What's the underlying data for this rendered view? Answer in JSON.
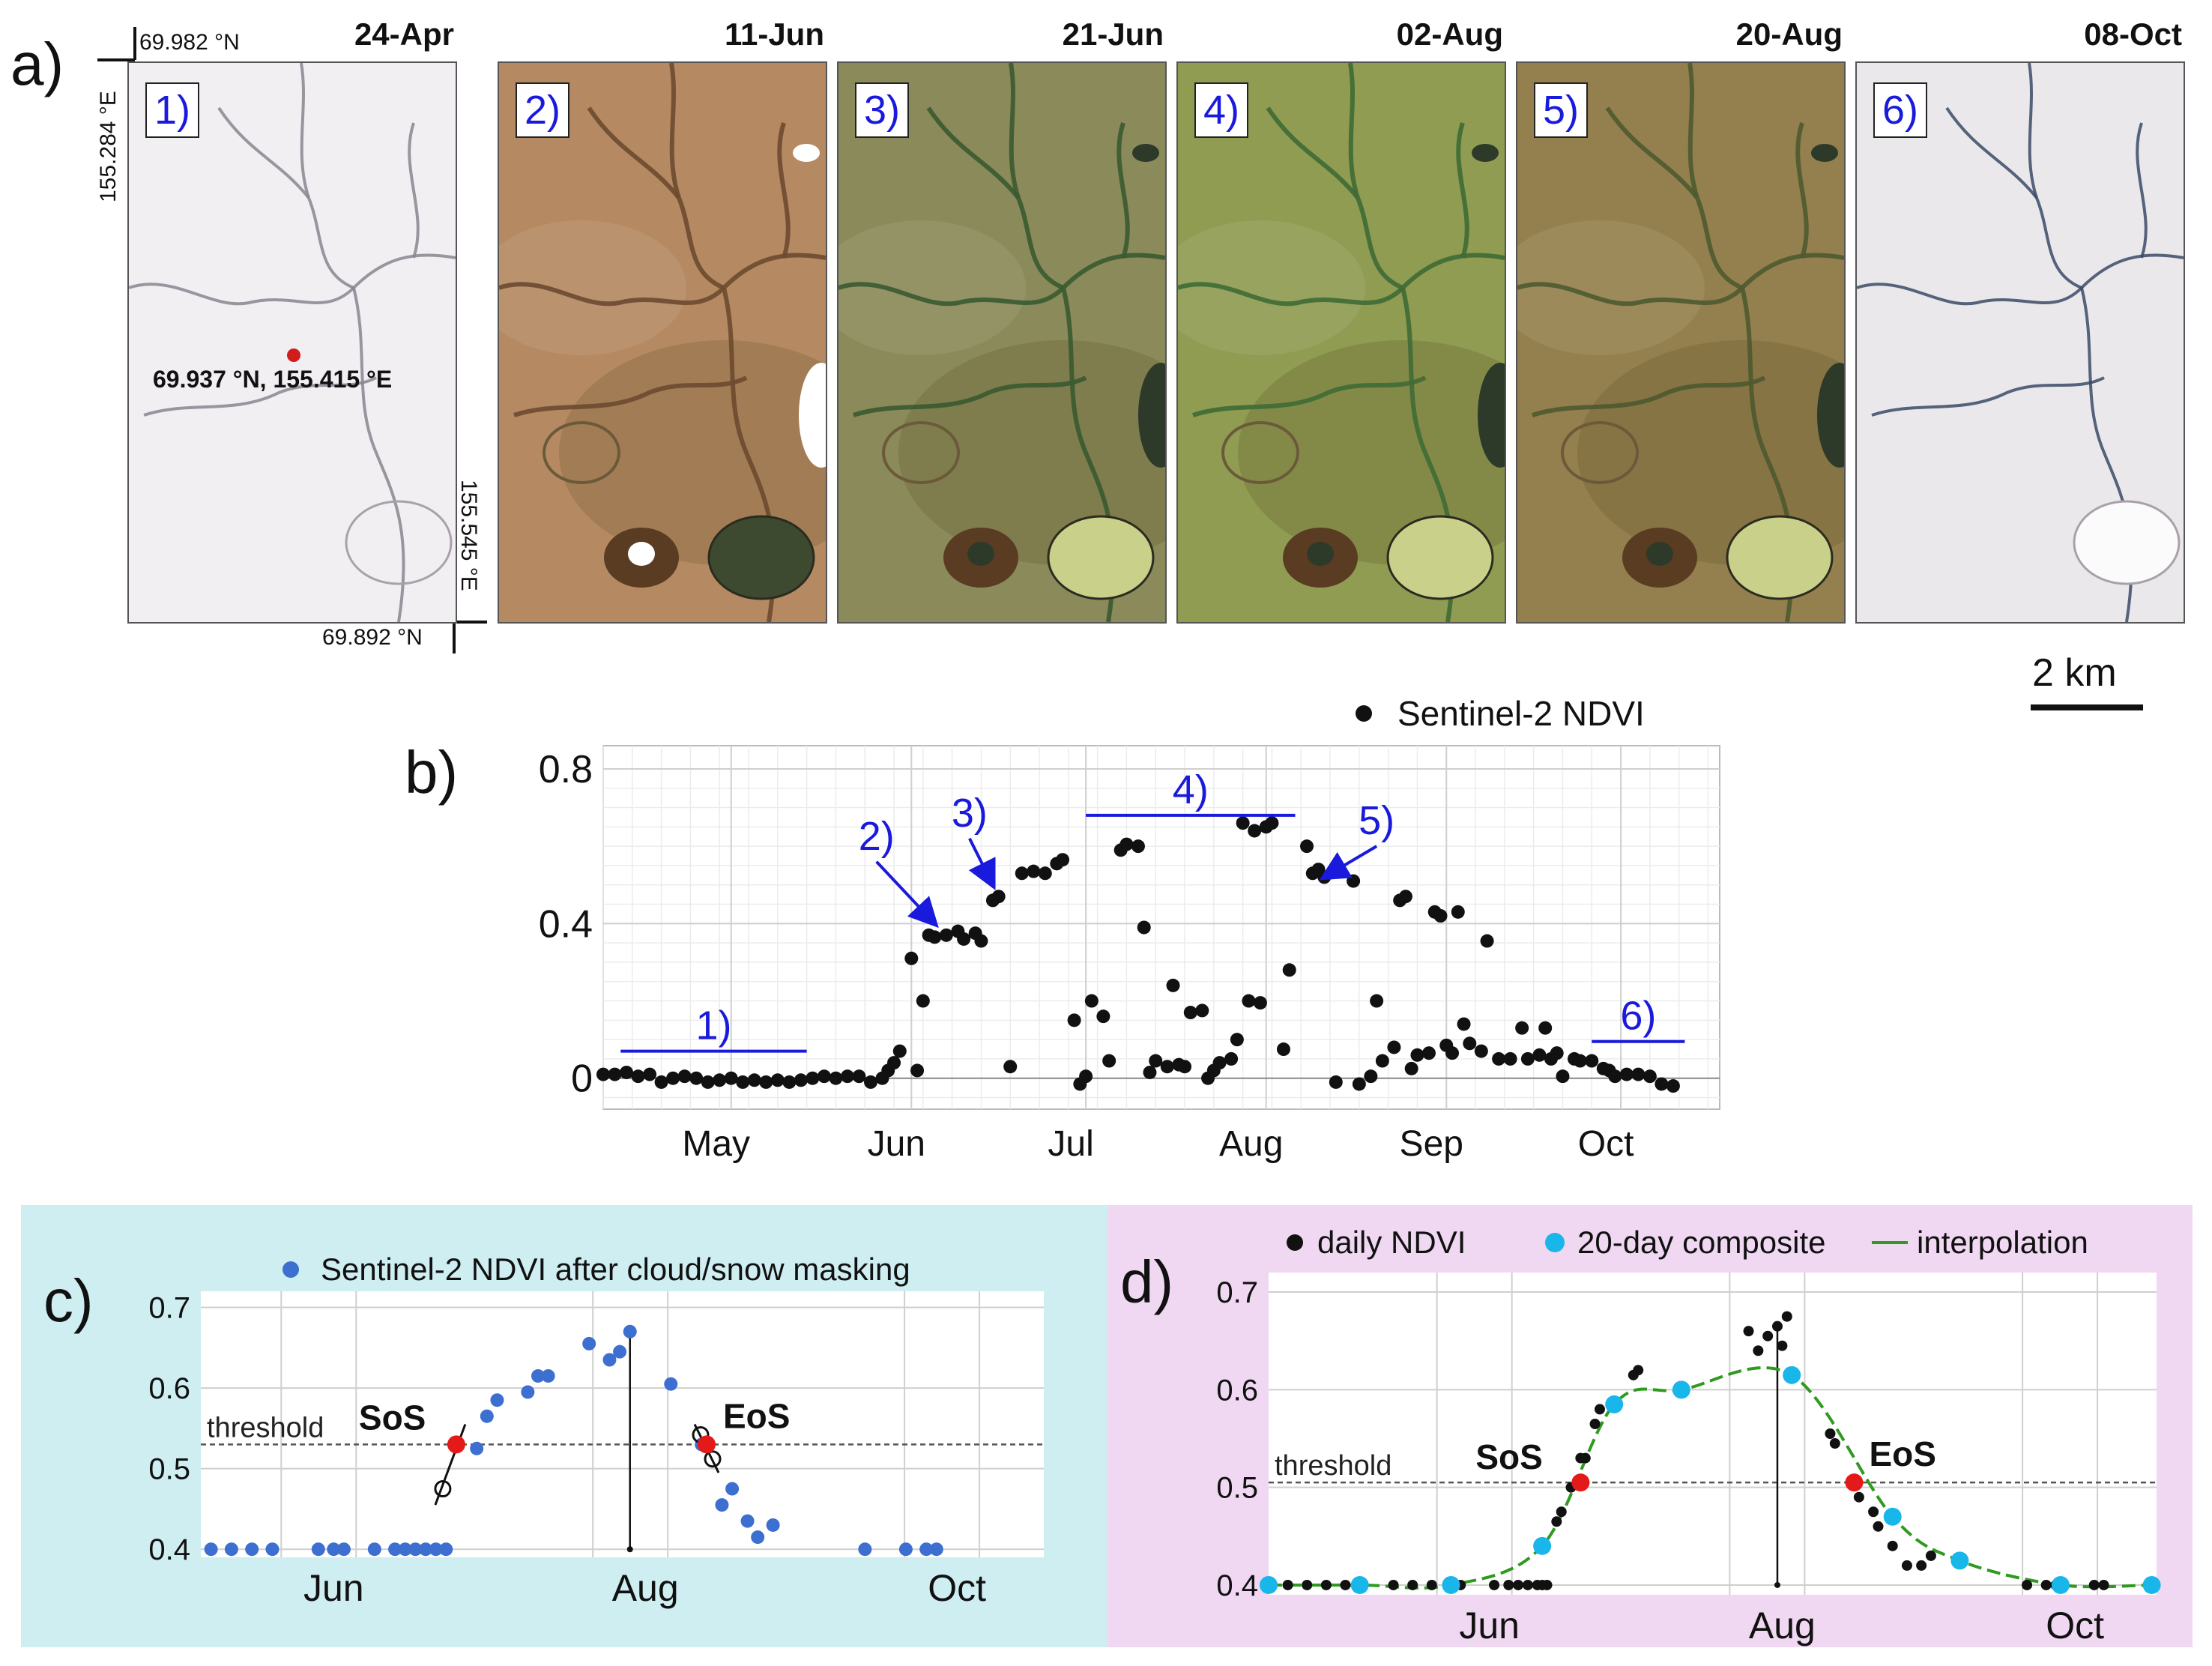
{
  "panel_a": {
    "label": "a)",
    "tiles": [
      {
        "num": "1)",
        "date": "24-Apr",
        "bg": "#f2eff2",
        "line": "#8a8590",
        "scene": "snow"
      },
      {
        "num": "2)",
        "date": "11-Jun",
        "bg": "#b58a62",
        "line": "#6d4a30",
        "scene": "melt"
      },
      {
        "num": "3)",
        "date": "21-Jun",
        "bg": "#8a8a5a",
        "line": "#3a5a30",
        "scene": "green1"
      },
      {
        "num": "4)",
        "date": "02-Aug",
        "bg": "#8f9c52",
        "line": "#3f6a35",
        "scene": "green2"
      },
      {
        "num": "5)",
        "date": "20-Aug",
        "bg": "#94804e",
        "line": "#4e5a30",
        "scene": "green3"
      },
      {
        "num": "6)",
        "date": "08-Oct",
        "bg": "#ebe8ec",
        "line": "#3a4a66",
        "scene": "snow2"
      }
    ],
    "coords": {
      "top_lat": "69.982 °N",
      "left_lon": "155.284 °E",
      "right_lon": "155.545 °E",
      "bottom_lat": "69.892 °N",
      "point": "69.937 °N, 155.415 °E"
    },
    "scale_bar": "2 km"
  },
  "panel_b": {
    "label": "b)",
    "legend": "Sentinel-2 NDVI",
    "annotations": [
      "1)",
      "2)",
      "3)",
      "4)",
      "5)",
      "6)"
    ]
  },
  "panel_c": {
    "label": "c)",
    "legend": "Sentinel-2 NDVI after cloud/snow masking",
    "threshold_label": "threshold",
    "sos_label": "SoS",
    "eos_label": "EoS"
  },
  "panel_d": {
    "label": "d)",
    "legend_daily": "daily NDVI",
    "legend_composite": "20-day composite",
    "legend_interp": "interpolation",
    "threshold_label": "threshold",
    "sos_label": "SoS",
    "eos_label": "EoS"
  },
  "chart_data": [
    {
      "id": "b",
      "type": "scatter",
      "title": "",
      "series_name": "Sentinel-2 NDVI",
      "xlabel": "",
      "ylabel": "",
      "x_unit": "day of year",
      "xlim": [
        113,
        305
      ],
      "ylim": [
        -0.08,
        0.86
      ],
      "yticks": [
        0,
        0.4,
        0.8
      ],
      "ytick_labels": [
        "0",
        "0.4",
        "0.8"
      ],
      "xticks": [
        135,
        166,
        196,
        227,
        258,
        288
      ],
      "xtick_labels": [
        "May",
        "Jun",
        "Jul",
        "Aug",
        "Sep",
        "Oct"
      ],
      "points": [
        [
          113,
          0.01
        ],
        [
          115,
          0.01
        ],
        [
          117,
          0.015
        ],
        [
          119,
          0.005
        ],
        [
          121,
          0.01
        ],
        [
          123,
          -0.01
        ],
        [
          125,
          0.0
        ],
        [
          127,
          0.005
        ],
        [
          129,
          0.0
        ],
        [
          131,
          -0.01
        ],
        [
          133,
          -0.005
        ],
        [
          135,
          0.0
        ],
        [
          137,
          -0.01
        ],
        [
          139,
          -0.005
        ],
        [
          141,
          -0.01
        ],
        [
          143,
          -0.005
        ],
        [
          145,
          -0.01
        ],
        [
          147,
          -0.005
        ],
        [
          149,
          0.0
        ],
        [
          151,
          0.005
        ],
        [
          153,
          0.0
        ],
        [
          155,
          0.005
        ],
        [
          157,
          0.005
        ],
        [
          159,
          -0.01
        ],
        [
          161,
          0.0
        ],
        [
          162,
          0.02
        ],
        [
          163,
          0.04
        ],
        [
          164,
          0.07
        ],
        [
          166,
          0.31
        ],
        [
          167,
          0.02
        ],
        [
          168,
          0.2
        ],
        [
          169,
          0.37
        ],
        [
          170,
          0.365
        ],
        [
          172,
          0.37
        ],
        [
          174,
          0.38
        ],
        [
          175,
          0.36
        ],
        [
          177,
          0.375
        ],
        [
          178,
          0.355
        ],
        [
          180,
          0.46
        ],
        [
          181,
          0.47
        ],
        [
          183,
          0.03
        ],
        [
          185,
          0.53
        ],
        [
          187,
          0.535
        ],
        [
          189,
          0.53
        ],
        [
          191,
          0.555
        ],
        [
          192,
          0.565
        ],
        [
          194,
          0.15
        ],
        [
          195,
          -0.015
        ],
        [
          196,
          0.005
        ],
        [
          197,
          0.2
        ],
        [
          199,
          0.16
        ],
        [
          200,
          0.045
        ],
        [
          202,
          0.59
        ],
        [
          203,
          0.605
        ],
        [
          205,
          0.6
        ],
        [
          206,
          0.39
        ],
        [
          207,
          0.015
        ],
        [
          208,
          0.045
        ],
        [
          210,
          0.03
        ],
        [
          211,
          0.24
        ],
        [
          212,
          0.035
        ],
        [
          213,
          0.03
        ],
        [
          214,
          0.17
        ],
        [
          216,
          0.175
        ],
        [
          217,
          0.0
        ],
        [
          218,
          0.02
        ],
        [
          219,
          0.04
        ],
        [
          221,
          0.05
        ],
        [
          222,
          0.1
        ],
        [
          223,
          0.66
        ],
        [
          224,
          0.2
        ],
        [
          225,
          0.64
        ],
        [
          226,
          0.195
        ],
        [
          227,
          0.65
        ],
        [
          228,
          0.66
        ],
        [
          230,
          0.075
        ],
        [
          231,
          0.28
        ],
        [
          234,
          0.6
        ],
        [
          235,
          0.53
        ],
        [
          236,
          0.54
        ],
        [
          237,
          0.52
        ],
        [
          239,
          -0.01
        ],
        [
          242,
          0.51
        ],
        [
          243,
          -0.015
        ],
        [
          245,
          0.005
        ],
        [
          246,
          0.2
        ],
        [
          247,
          0.045
        ],
        [
          249,
          0.08
        ],
        [
          250,
          0.46
        ],
        [
          251,
          0.47
        ],
        [
          252,
          0.025
        ],
        [
          253,
          0.06
        ],
        [
          255,
          0.065
        ],
        [
          256,
          0.43
        ],
        [
          257,
          0.42
        ],
        [
          258,
          0.085
        ],
        [
          259,
          0.065
        ],
        [
          260,
          0.43
        ],
        [
          261,
          0.14
        ],
        [
          262,
          0.09
        ],
        [
          264,
          0.07
        ],
        [
          265,
          0.355
        ],
        [
          267,
          0.05
        ],
        [
          269,
          0.05
        ],
        [
          271,
          0.13
        ],
        [
          272,
          0.05
        ],
        [
          274,
          0.06
        ],
        [
          275,
          0.13
        ],
        [
          276,
          0.05
        ],
        [
          277,
          0.065
        ],
        [
          278,
          0.005
        ],
        [
          280,
          0.05
        ],
        [
          281,
          0.045
        ],
        [
          283,
          0.045
        ],
        [
          285,
          0.025
        ],
        [
          286,
          0.02
        ],
        [
          287,
          0.005
        ],
        [
          289,
          0.01
        ],
        [
          291,
          0.01
        ],
        [
          293,
          0.005
        ],
        [
          295,
          -0.015
        ],
        [
          297,
          -0.02
        ]
      ],
      "annotation_bars": [
        {
          "label": "1)",
          "x0": 116,
          "x1": 148,
          "y": 0.07
        },
        {
          "label": "4)",
          "x0": 196,
          "x1": 232,
          "y": 0.68
        },
        {
          "label": "6)",
          "x0": 283,
          "x1": 299,
          "y": 0.095
        }
      ],
      "arrows": [
        {
          "label": "2)",
          "from": [
            160,
            0.56
          ],
          "to": [
            170,
            0.4
          ]
        },
        {
          "label": "3)",
          "from": [
            176,
            0.62
          ],
          "to": [
            180,
            0.5
          ]
        },
        {
          "label": "5)",
          "from": [
            246,
            0.6
          ],
          "to": [
            237,
            0.52
          ]
        }
      ]
    },
    {
      "id": "c",
      "type": "scatter",
      "series_name": "Sentinel-2 NDVI after cloud/snow masking",
      "xlabel": "",
      "ylabel": "",
      "xlim": [
        140,
        305
      ],
      "ylim": [
        0.39,
        0.72
      ],
      "yticks": [
        0.4,
        0.5,
        0.6,
        0.7
      ],
      "ytick_labels": [
        "0.4",
        "0.5",
        "0.6",
        "0.7"
      ],
      "xticks": [
        166,
        227,
        288
      ],
      "xtick_labels": [
        "Jun",
        "Aug",
        "Oct"
      ],
      "threshold": 0.53,
      "points": [
        [
          142,
          0.4
        ],
        [
          146,
          0.4
        ],
        [
          150,
          0.4
        ],
        [
          154,
          0.4
        ],
        [
          163,
          0.4
        ],
        [
          166,
          0.4
        ],
        [
          168,
          0.4
        ],
        [
          174,
          0.4
        ],
        [
          178,
          0.4
        ],
        [
          180,
          0.4
        ],
        [
          182,
          0.4
        ],
        [
          184,
          0.4
        ],
        [
          186,
          0.4
        ],
        [
          188,
          0.4
        ],
        [
          194,
          0.525
        ],
        [
          196,
          0.565
        ],
        [
          198,
          0.585
        ],
        [
          204,
          0.595
        ],
        [
          206,
          0.615
        ],
        [
          208,
          0.615
        ],
        [
          216,
          0.655
        ],
        [
          220,
          0.635
        ],
        [
          222,
          0.645
        ],
        [
          224,
          0.67
        ],
        [
          232,
          0.605
        ],
        [
          238,
          0.53
        ],
        [
          242,
          0.455
        ],
        [
          244,
          0.475
        ],
        [
          247,
          0.435
        ],
        [
          249,
          0.415
        ],
        [
          252,
          0.43
        ],
        [
          270,
          0.4
        ],
        [
          278,
          0.4
        ],
        [
          282,
          0.4
        ],
        [
          284,
          0.4
        ]
      ],
      "sos": {
        "x": 190,
        "y": 0.53
      },
      "eos": {
        "x": 239,
        "y": 0.53
      },
      "peak_x": 224
    },
    {
      "id": "d",
      "type": "scatter",
      "xlabel": "",
      "ylabel": "",
      "xlim": [
        120,
        305
      ],
      "ylim": [
        0.39,
        0.72
      ],
      "yticks": [
        0.4,
        0.5,
        0.6,
        0.7
      ],
      "ytick_labels": [
        "0.4",
        "0.5",
        "0.6",
        "0.7"
      ],
      "xticks": [
        166,
        227,
        288
      ],
      "xtick_labels": [
        "Jun",
        "Aug",
        "Oct"
      ],
      "threshold": 0.505,
      "daily": [
        [
          124,
          0.4
        ],
        [
          128,
          0.4
        ],
        [
          132,
          0.4
        ],
        [
          136,
          0.4
        ],
        [
          146,
          0.4
        ],
        [
          150,
          0.4
        ],
        [
          154,
          0.4
        ],
        [
          160,
          0.4
        ],
        [
          167,
          0.4
        ],
        [
          170,
          0.4
        ],
        [
          172,
          0.4
        ],
        [
          174,
          0.4
        ],
        [
          176,
          0.4
        ],
        [
          177,
          0.4
        ],
        [
          178,
          0.4
        ],
        [
          180,
          0.465
        ],
        [
          181,
          0.475
        ],
        [
          183,
          0.5
        ],
        [
          185,
          0.53
        ],
        [
          186,
          0.53
        ],
        [
          188,
          0.565
        ],
        [
          189,
          0.58
        ],
        [
          196,
          0.615
        ],
        [
          197,
          0.62
        ],
        [
          206,
          0.6
        ],
        [
          220,
          0.66
        ],
        [
          222,
          0.64
        ],
        [
          224,
          0.655
        ],
        [
          226,
          0.665
        ],
        [
          227,
          0.645
        ],
        [
          228,
          0.675
        ],
        [
          237,
          0.555
        ],
        [
          238,
          0.545
        ],
        [
          243,
          0.49
        ],
        [
          246,
          0.475
        ],
        [
          247,
          0.46
        ],
        [
          250,
          0.44
        ],
        [
          253,
          0.42
        ],
        [
          256,
          0.42
        ],
        [
          258,
          0.43
        ],
        [
          278,
          0.4
        ],
        [
          282,
          0.4
        ],
        [
          284,
          0.4
        ],
        [
          292,
          0.4
        ],
        [
          294,
          0.4
        ]
      ],
      "composite": [
        [
          120,
          0.4
        ],
        [
          139,
          0.4
        ],
        [
          158,
          0.4
        ],
        [
          177,
          0.44
        ],
        [
          192,
          0.585
        ],
        [
          206,
          0.6
        ],
        [
          229,
          0.615
        ],
        [
          250,
          0.47
        ],
        [
          264,
          0.425
        ],
        [
          285,
          0.4
        ],
        [
          304,
          0.4
        ]
      ],
      "sos": {
        "x": 185,
        "y": 0.505
      },
      "eos": {
        "x": 242,
        "y": 0.505
      },
      "peak_x": 226
    }
  ]
}
